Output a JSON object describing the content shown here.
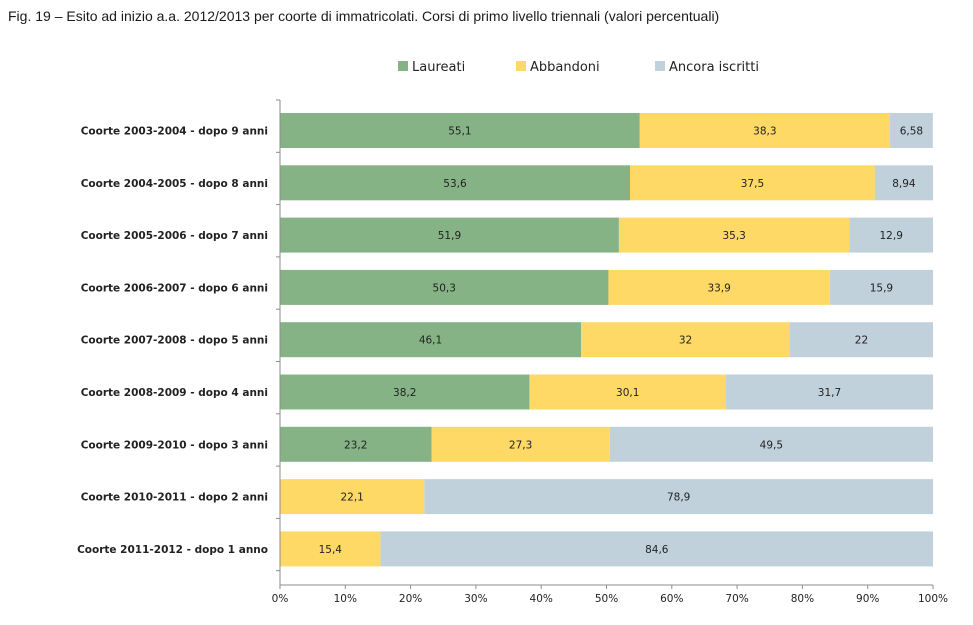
{
  "chart_data": {
    "type": "bar",
    "orientation": "horizontal",
    "stacked": true,
    "title": "Fig. 19 – Esito ad inizio a.a. 2012/2013 per coorte di immatricolati. Corsi di primo livello triennali (valori percentuali)",
    "categories": [
      "Coorte 2003-2004 - dopo 9 anni",
      "Coorte 2004-2005 - dopo 8 anni",
      "Coorte 2005-2006 - dopo 7 anni",
      "Coorte 2006-2007 - dopo 6 anni",
      "Coorte 2007-2008 - dopo 5 anni",
      "Coorte 2008-2009 - dopo 4 anni",
      "Coorte 2009-2010 - dopo 3 anni",
      "Coorte 2010-2011 - dopo 2 anni",
      "Coorte 2011-2012 - dopo 1 anno"
    ],
    "series": [
      {
        "name": "Laureati",
        "color": "#86b386",
        "values": [
          55.1,
          53.6,
          51.9,
          50.3,
          46.1,
          38.2,
          23.2,
          0,
          0
        ],
        "labels": [
          "55,1",
          "53,6",
          "51,9",
          "50,3",
          "46,1",
          "38,2",
          "23,2",
          "",
          ""
        ]
      },
      {
        "name": "Abbandoni",
        "color": "#ffd966",
        "values": [
          38.3,
          37.5,
          35.3,
          33.9,
          32,
          30.1,
          27.3,
          22.1,
          15.4
        ],
        "labels": [
          "38,3",
          "37,5",
          "35,3",
          "33,9",
          "32",
          "30,1",
          "27,3",
          "22,1",
          "15,4"
        ]
      },
      {
        "name": "Ancora iscritti",
        "color": "#c1d1dc",
        "values": [
          6.58,
          8.94,
          12.9,
          15.9,
          22,
          31.7,
          49.5,
          78.9,
          84.6
        ],
        "labels": [
          "6,58",
          "8,94",
          "12,9",
          "15,9",
          "22",
          "31,7",
          "49,5",
          "78,9",
          "84,6"
        ]
      }
    ],
    "xlim": [
      0,
      100
    ],
    "xticks": [
      "0%",
      "10%",
      "20%",
      "30%",
      "40%",
      "50%",
      "60%",
      "70%",
      "80%",
      "90%",
      "100%"
    ],
    "legend": "top",
    "grid": false
  }
}
